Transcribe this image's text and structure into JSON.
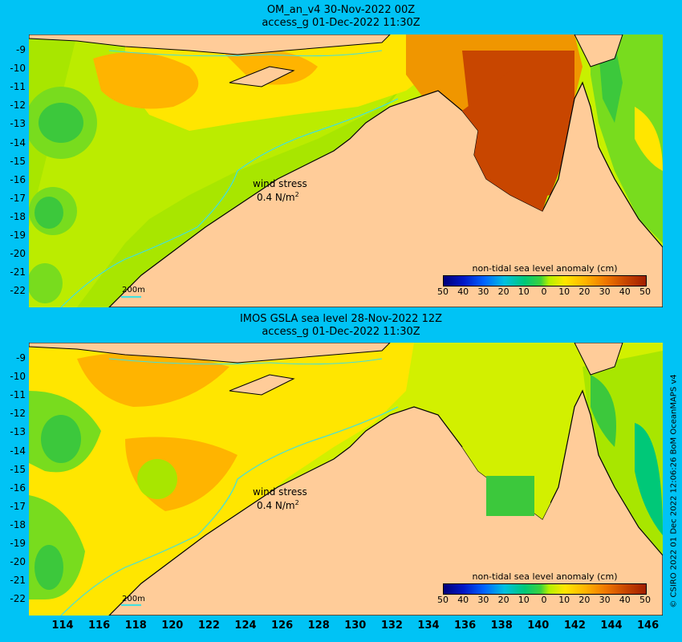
{
  "panels": [
    {
      "title": "OM_an_v4  30-Nov-2022 00Z",
      "subtitle": "access_g 01-Dec-2022 11:30Z"
    },
    {
      "title": "IMOS GSLA sea level  28-Nov-2022 12Z",
      "subtitle": "access_g 01-Dec-2022 11:30Z"
    }
  ],
  "y_labels": [
    "-9",
    "-10",
    "-11",
    "-12",
    "-13",
    "-14",
    "-15",
    "-16",
    "-17",
    "-18",
    "-19",
    "-20",
    "-21",
    "-22"
  ],
  "x_labels": [
    "114",
    "116",
    "118",
    "120",
    "122",
    "124",
    "126",
    "128",
    "130",
    "132",
    "134",
    "136",
    "138",
    "140",
    "142",
    "144",
    "146"
  ],
  "legend": {
    "title": "non-tidal sea level anomaly (cm)",
    "ticks": [
      "50",
      "40",
      "30",
      "20",
      "10",
      "0",
      "10",
      "20",
      "30",
      "40",
      "50"
    ]
  },
  "wind": {
    "line1": "wind stress",
    "line2": "0.4 N/m",
    "sup": "2"
  },
  "scale_label": "200m",
  "credit": "© CSIRO 2022   01 Dec 2022 12:06:26 BoM OceanMAPS v4",
  "colors": {
    "background": "#00c3f5",
    "land": "#ffcc99",
    "contour": "#40e0e0"
  }
}
